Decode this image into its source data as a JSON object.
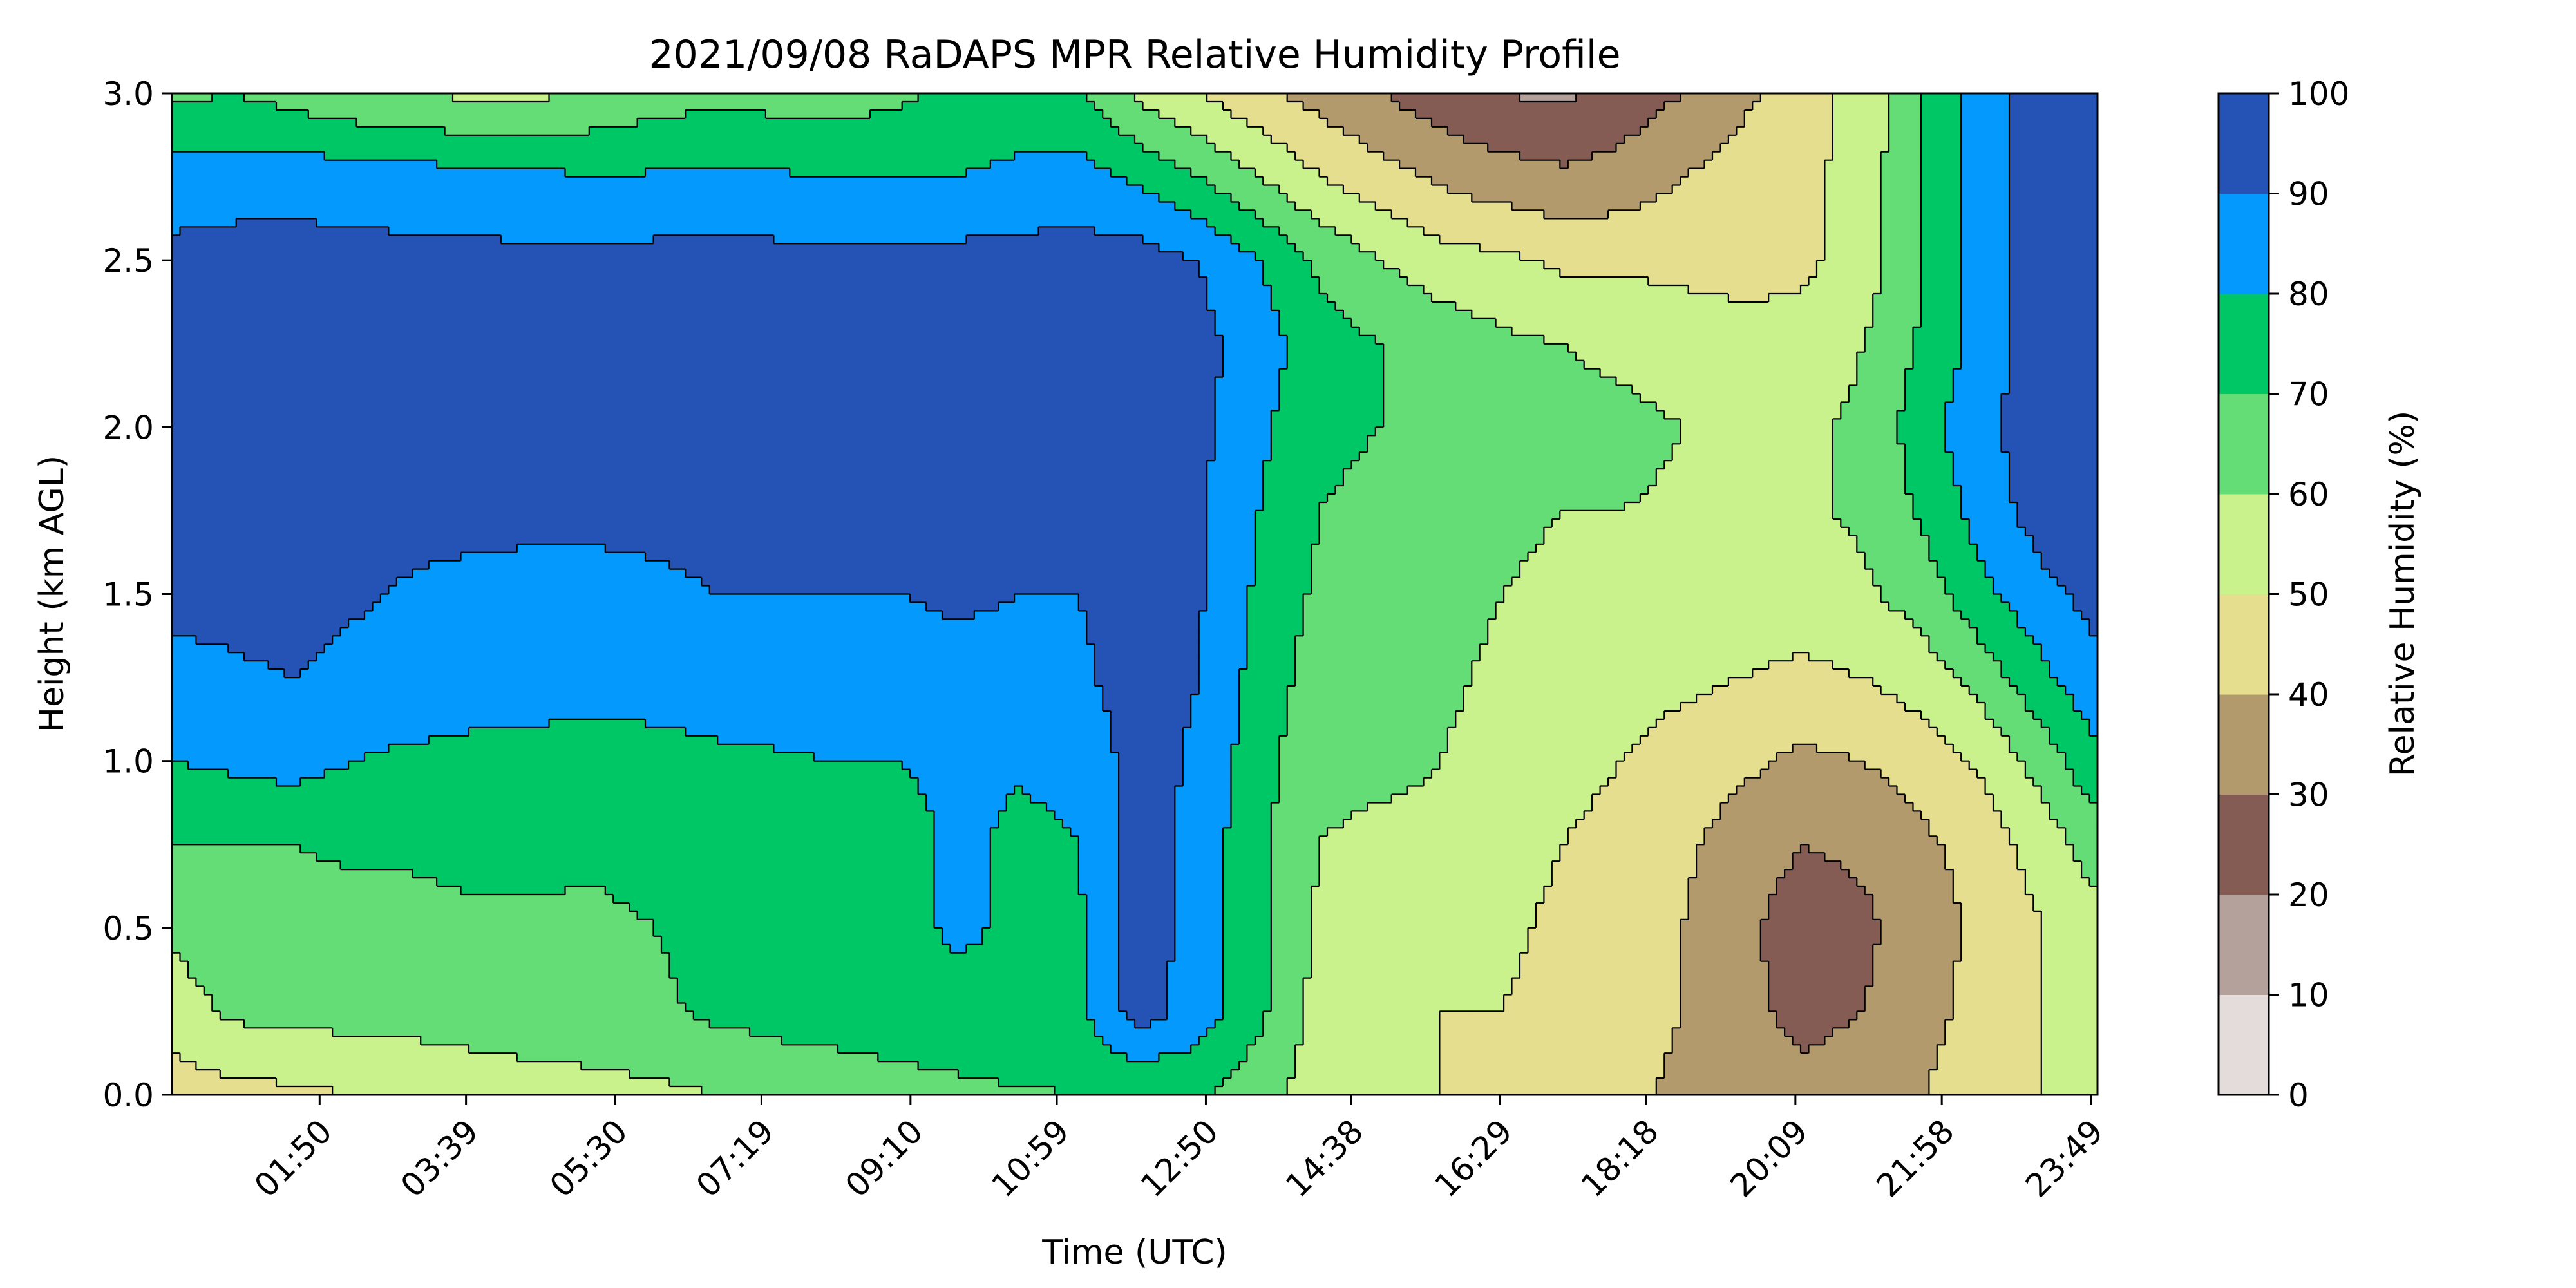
{
  "chart_data": {
    "type": "heatmap",
    "subtype": "filled-contour",
    "title": "2021/09/08 RaDAPS MPR Relative Humidity Profile",
    "xlabel": "Time (UTC)",
    "ylabel": "Height (km AGL)",
    "colorbar_label": "Relative Humidity (%)",
    "x_unit": "hours UTC",
    "xlim": [
      0.0,
      23.9
    ],
    "ylim": [
      0.0,
      3.0
    ],
    "x_ticks": [
      {
        "label": "01:50",
        "value": 1.833
      },
      {
        "label": "03:39",
        "value": 3.65
      },
      {
        "label": "05:30",
        "value": 5.5
      },
      {
        "label": "07:19",
        "value": 7.317
      },
      {
        "label": "09:10",
        "value": 9.167
      },
      {
        "label": "10:59",
        "value": 10.983
      },
      {
        "label": "12:50",
        "value": 12.833
      },
      {
        "label": "14:38",
        "value": 14.633
      },
      {
        "label": "16:29",
        "value": 16.483
      },
      {
        "label": "18:18",
        "value": 18.3
      },
      {
        "label": "20:09",
        "value": 20.15
      },
      {
        "label": "21:58",
        "value": 21.967
      },
      {
        "label": "23:49",
        "value": 23.817
      }
    ],
    "y_ticks": [
      "0.0",
      "0.5",
      "1.0",
      "1.5",
      "2.0",
      "2.5",
      "3.0"
    ],
    "y_tick_values": [
      0.0,
      0.5,
      1.0,
      1.5,
      2.0,
      2.5,
      3.0
    ],
    "levels": [
      0,
      10,
      20,
      30,
      40,
      50,
      60,
      70,
      80,
      90,
      100
    ],
    "level_labels": [
      "0",
      "10",
      "20",
      "30",
      "40",
      "50",
      "60",
      "70",
      "80",
      "90",
      "100"
    ],
    "level_colors": [
      "#e3dcdb",
      "#b5a19b",
      "#855c54",
      "#b39a6d",
      "#e5de8f",
      "#caf28c",
      "#64dd76",
      "#00c765",
      "#0399fd",
      "#2553b5"
    ],
    "heights_km": [
      0.0,
      0.25,
      0.5,
      0.75,
      1.0,
      1.25,
      1.5,
      1.75,
      2.0,
      2.25,
      2.5,
      2.75,
      3.0
    ],
    "times_h": [
      0.0,
      0.75,
      1.5,
      2.25,
      3.0,
      3.75,
      4.5,
      5.25,
      6.0,
      6.75,
      7.5,
      8.25,
      9.0,
      9.75,
      10.5,
      11.25,
      12.0,
      12.75,
      13.5,
      14.25,
      15.0,
      15.75,
      16.5,
      17.25,
      18.0,
      18.75,
      19.5,
      20.25,
      21.0,
      21.75,
      22.5,
      23.25,
      23.9
    ],
    "rh_percent": [
      [
        45,
        47,
        48,
        50,
        52,
        54,
        56,
        57,
        58,
        60,
        62,
        64,
        66,
        68,
        69,
        70,
        70,
        72,
        64,
        55,
        52,
        50,
        48,
        45,
        42,
        38,
        35,
        33,
        35,
        40,
        45,
        50,
        52
      ],
      [
        55,
        62,
        63,
        64,
        64,
        65,
        66,
        66,
        68,
        72,
        74,
        75,
        76,
        76,
        78,
        78,
        95,
        85,
        72,
        56,
        52,
        50,
        50,
        47,
        45,
        40,
        33,
        27,
        30,
        37,
        44,
        50,
        55
      ],
      [
        62,
        66,
        67,
        68,
        68,
        68,
        68,
        68,
        70,
        74,
        75,
        76,
        76,
        82,
        78,
        78,
        95,
        86,
        72,
        58,
        54,
        56,
        52,
        48,
        45,
        40,
        32,
        25,
        28,
        35,
        43,
        50,
        57
      ],
      [
        70,
        70,
        70,
        71,
        71,
        73,
        73,
        72,
        73,
        76,
        76,
        76,
        76,
        82,
        78,
        80,
        95,
        86,
        72,
        60,
        58,
        58,
        54,
        50,
        48,
        42,
        35,
        30,
        32,
        38,
        45,
        55,
        65
      ],
      [
        80,
        82,
        84,
        80,
        78,
        77,
        77,
        76,
        76,
        78,
        79,
        80,
        80,
        82,
        81,
        82,
        95,
        88,
        74,
        62,
        62,
        60,
        56,
        52,
        50,
        46,
        42,
        38,
        40,
        45,
        52,
        65,
        78
      ],
      [
        88,
        89,
        90,
        88,
        87,
        85,
        84,
        84,
        85,
        86,
        86,
        86,
        86,
        88,
        88,
        88,
        95,
        90,
        76,
        65,
        65,
        62,
        58,
        55,
        54,
        52,
        50,
        48,
        50,
        55,
        65,
        78,
        88
      ],
      [
        92,
        92,
        93,
        91,
        89,
        87,
        86,
        86,
        88,
        90,
        90,
        90,
        90,
        91,
        90,
        90,
        95,
        91,
        78,
        68,
        66,
        64,
        60,
        58,
        57,
        56,
        55,
        55,
        58,
        65,
        78,
        88,
        93
      ],
      [
        94,
        95,
        95,
        94,
        93,
        93,
        93,
        93,
        93,
        93,
        93,
        93,
        93,
        93,
        93,
        92,
        94,
        91,
        80,
        70,
        68,
        66,
        62,
        60,
        60,
        59,
        58,
        58,
        62,
        72,
        85,
        95,
        96
      ],
      [
        95,
        96,
        96,
        96,
        95,
        95,
        95,
        95,
        95,
        95,
        95,
        95,
        95,
        95,
        95,
        95,
        94,
        93,
        82,
        72,
        70,
        68,
        64,
        63,
        62,
        60,
        58,
        58,
        62,
        76,
        88,
        96,
        96
      ],
      [
        95,
        95,
        95,
        95,
        95,
        95,
        95,
        95,
        95,
        95,
        95,
        95,
        95,
        95,
        95,
        95,
        94,
        93,
        85,
        74,
        70,
        66,
        62,
        60,
        58,
        56,
        54,
        54,
        60,
        72,
        85,
        96,
        96
      ],
      [
        93,
        94,
        94,
        93,
        93,
        93,
        92,
        92,
        93,
        93,
        93,
        93,
        93,
        93,
        94,
        94,
        94,
        90,
        80,
        68,
        60,
        54,
        52,
        48,
        48,
        47,
        46,
        48,
        55,
        70,
        85,
        96,
        96
      ],
      [
        84,
        85,
        86,
        85,
        84,
        83,
        82,
        80,
        81,
        81,
        81,
        80,
        80,
        80,
        82,
        84,
        78,
        70,
        60,
        50,
        44,
        38,
        34,
        32,
        34,
        40,
        44,
        47,
        55,
        70,
        85,
        96,
        96
      ],
      [
        68,
        70,
        66,
        62,
        60,
        58,
        58,
        62,
        65,
        68,
        66,
        65,
        68,
        72,
        74,
        72,
        58,
        50,
        42,
        36,
        30,
        24,
        20,
        18,
        24,
        30,
        38,
        45,
        54,
        70,
        85,
        96,
        96
      ]
    ]
  }
}
